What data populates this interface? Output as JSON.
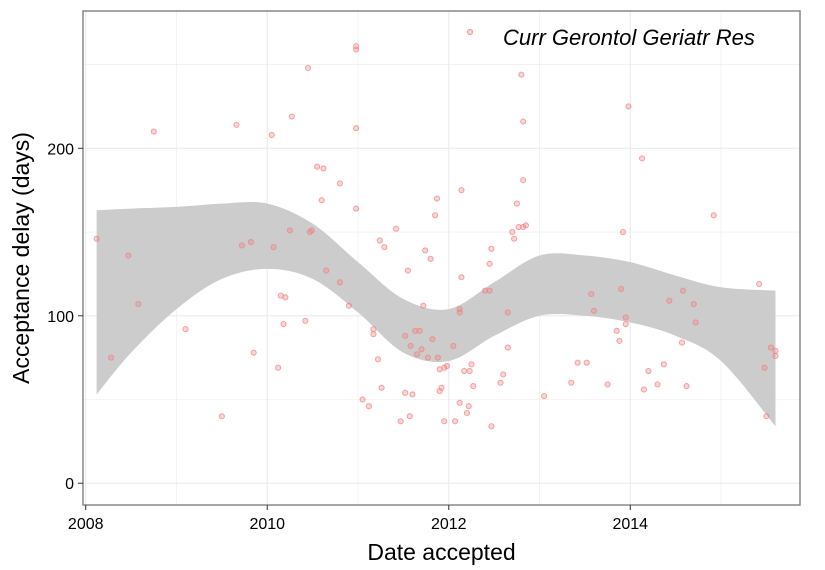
{
  "chart_data": {
    "type": "scatter",
    "title": "",
    "xlabel": "Date accepted",
    "ylabel": "Acceptance delay (days)",
    "xlim": [
      2007.97,
      2015.87
    ],
    "ylim": [
      -13,
      282
    ],
    "x_ticks": [
      2008,
      2010,
      2012,
      2014
    ],
    "y_ticks": [
      0,
      100,
      200
    ],
    "grid": true,
    "legend": {
      "position": "top-right",
      "entries": [
        "Curr Gerontol Geriatr Res"
      ]
    },
    "colors": {
      "points": "#f08080",
      "ribbon": "#cccccc",
      "grid": "#ebebeb",
      "panel_border": "#7f7f7f"
    },
    "series": [
      {
        "name": "Curr Gerontol Geriatr Res",
        "points": [
          [
            2008.12,
            146
          ],
          [
            2008.28,
            75
          ],
          [
            2008.47,
            136
          ],
          [
            2008.58,
            107
          ],
          [
            2008.75,
            210
          ],
          [
            2009.1,
            92
          ],
          [
            2009.5,
            40
          ],
          [
            2009.66,
            214
          ],
          [
            2009.72,
            142
          ],
          [
            2009.82,
            144
          ],
          [
            2009.85,
            78
          ],
          [
            2010.05,
            208
          ],
          [
            2010.07,
            141
          ],
          [
            2010.12,
            69
          ],
          [
            2010.15,
            112
          ],
          [
            2010.18,
            95
          ],
          [
            2010.2,
            111
          ],
          [
            2010.25,
            151
          ],
          [
            2010.27,
            219
          ],
          [
            2010.42,
            97
          ],
          [
            2010.45,
            248
          ],
          [
            2010.47,
            150
          ],
          [
            2010.49,
            151
          ],
          [
            2010.55,
            189
          ],
          [
            2010.6,
            169
          ],
          [
            2010.62,
            188
          ],
          [
            2010.65,
            127
          ],
          [
            2010.8,
            179
          ],
          [
            2010.8,
            120
          ],
          [
            2010.9,
            106
          ],
          [
            2010.98,
            212
          ],
          [
            2010.98,
            164
          ],
          [
            2010.98,
            259
          ],
          [
            2010.98,
            261
          ],
          [
            2011.05,
            50
          ],
          [
            2011.12,
            46
          ],
          [
            2011.17,
            92
          ],
          [
            2011.17,
            89
          ],
          [
            2011.22,
            74
          ],
          [
            2011.24,
            145
          ],
          [
            2011.26,
            57
          ],
          [
            2011.29,
            141
          ],
          [
            2011.42,
            152
          ],
          [
            2011.47,
            37
          ],
          [
            2011.52,
            88
          ],
          [
            2011.52,
            54
          ],
          [
            2011.55,
            127
          ],
          [
            2011.57,
            40
          ],
          [
            2011.58,
            82
          ],
          [
            2011.6,
            53
          ],
          [
            2011.63,
            91
          ],
          [
            2011.65,
            77
          ],
          [
            2011.68,
            91
          ],
          [
            2011.7,
            80
          ],
          [
            2011.72,
            106
          ],
          [
            2011.74,
            139
          ],
          [
            2011.77,
            75
          ],
          [
            2011.8,
            134
          ],
          [
            2011.82,
            86
          ],
          [
            2011.85,
            160
          ],
          [
            2011.87,
            170
          ],
          [
            2011.88,
            75
          ],
          [
            2011.9,
            68
          ],
          [
            2011.9,
            55
          ],
          [
            2011.92,
            57
          ],
          [
            2011.95,
            69
          ],
          [
            2011.95,
            37
          ],
          [
            2011.98,
            70
          ],
          [
            2012.05,
            82
          ],
          [
            2012.07,
            37
          ],
          [
            2012.12,
            48
          ],
          [
            2012.12,
            102
          ],
          [
            2012.12,
            104
          ],
          [
            2012.14,
            123
          ],
          [
            2012.14,
            175
          ],
          [
            2012.17,
            67
          ],
          [
            2012.2,
            42
          ],
          [
            2012.22,
            46
          ],
          [
            2012.23,
            67
          ],
          [
            2012.25,
            71
          ],
          [
            2012.27,
            58
          ],
          [
            2012.4,
            115
          ],
          [
            2012.45,
            131
          ],
          [
            2012.45,
            115
          ],
          [
            2012.47,
            34
          ],
          [
            2012.47,
            140
          ],
          [
            2012.57,
            60
          ],
          [
            2012.6,
            65
          ],
          [
            2012.65,
            102
          ],
          [
            2012.65,
            81
          ],
          [
            2012.7,
            150
          ],
          [
            2012.72,
            146
          ],
          [
            2012.75,
            167
          ],
          [
            2012.77,
            153
          ],
          [
            2012.8,
            244
          ],
          [
            2012.82,
            216
          ],
          [
            2012.82,
            181
          ],
          [
            2012.82,
            153
          ],
          [
            2012.85,
            154
          ],
          [
            2013.05,
            52
          ],
          [
            2013.35,
            60
          ],
          [
            2013.42,
            72
          ],
          [
            2013.52,
            72
          ],
          [
            2013.57,
            113
          ],
          [
            2013.6,
            103
          ],
          [
            2013.75,
            59
          ],
          [
            2013.85,
            91
          ],
          [
            2013.88,
            85
          ],
          [
            2013.9,
            116
          ],
          [
            2013.92,
            150
          ],
          [
            2013.95,
            99
          ],
          [
            2013.95,
            95
          ],
          [
            2013.98,
            225
          ],
          [
            2014.13,
            194
          ],
          [
            2014.15,
            56
          ],
          [
            2014.2,
            67
          ],
          [
            2014.3,
            59
          ],
          [
            2014.37,
            71
          ],
          [
            2014.43,
            109
          ],
          [
            2014.57,
            84
          ],
          [
            2014.58,
            115
          ],
          [
            2014.62,
            58
          ],
          [
            2014.7,
            107
          ],
          [
            2014.72,
            96
          ],
          [
            2014.92,
            160
          ],
          [
            2015.42,
            119
          ],
          [
            2015.48,
            69
          ],
          [
            2015.5,
            40
          ],
          [
            2015.55,
            81
          ],
          [
            2015.6,
            76
          ],
          [
            2015.6,
            79
          ]
        ],
        "smooth_band": {
          "x": [
            2008.12,
            2008.5,
            2009,
            2009.5,
            2010,
            2010.5,
            2011,
            2011.5,
            2012,
            2012.5,
            2013,
            2013.5,
            2014,
            2014.5,
            2015,
            2015.6
          ],
          "lower": [
            53,
            78,
            104,
            122,
            128,
            122,
            102,
            78,
            73,
            88,
            100,
            100,
            96,
            88,
            73,
            34
          ],
          "upper": [
            163,
            164,
            165,
            167,
            167,
            155,
            132,
            110,
            104,
            120,
            136,
            136,
            132,
            124,
            117,
            115
          ]
        }
      }
    ]
  }
}
